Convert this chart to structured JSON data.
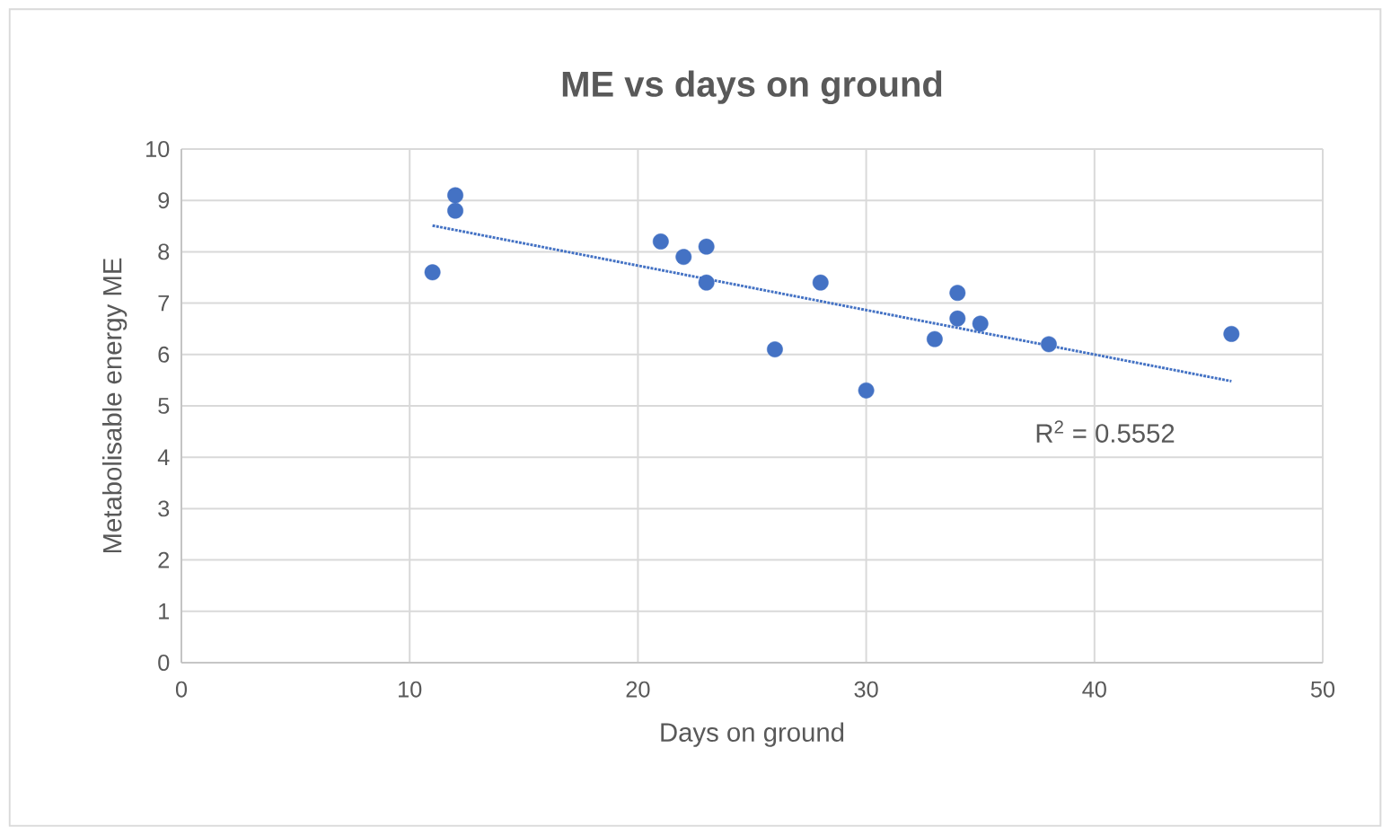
{
  "chart_data": {
    "type": "scatter",
    "title": "ME vs days on ground",
    "xlabel": "Days on ground",
    "ylabel": "Metabolisable energy ME",
    "xlim": [
      0,
      50
    ],
    "xticks": [
      0,
      10,
      20,
      30,
      40,
      50
    ],
    "ylim": [
      0,
      10
    ],
    "yticks": [
      0,
      1,
      2,
      3,
      4,
      5,
      6,
      7,
      8,
      9,
      10
    ],
    "grid": true,
    "series": [
      {
        "marker": "circle",
        "color": "#4472c4",
        "x": [
          11,
          12,
          12,
          21,
          22,
          23,
          23,
          26,
          28,
          30,
          33,
          34,
          34,
          35,
          38,
          46
        ],
        "values": [
          7.6,
          9.1,
          8.8,
          8.2,
          7.9,
          8.1,
          7.4,
          6.1,
          7.4,
          5.3,
          6.3,
          7.2,
          6.7,
          6.6,
          6.2,
          6.4
        ]
      },
      {
        "type": "line",
        "marker": "none",
        "color": "#4472c4",
        "line_style": "dotted",
        "x": [
          11,
          46
        ],
        "values": [
          8.51,
          5.48
        ]
      }
    ],
    "annotations": [
      "R$^{2}$ = 0.5552"
    ]
  }
}
